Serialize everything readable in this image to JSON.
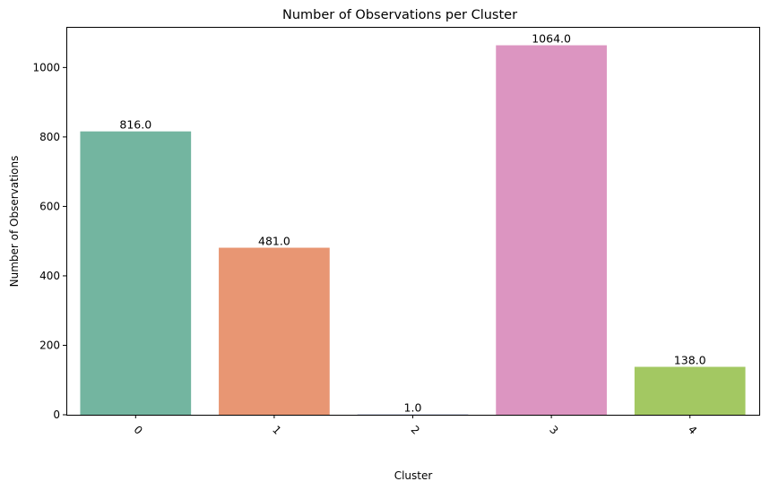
{
  "chart_data": {
    "type": "bar",
    "title": "Number of Observations per Cluster",
    "xlabel": "Cluster",
    "ylabel": "Number of Observations",
    "categories": [
      "0",
      "1",
      "2",
      "3",
      "4"
    ],
    "values": [
      816.0,
      481.0,
      1.0,
      1064.0,
      138.0
    ],
    "data_labels": [
      "816.0",
      "481.0",
      "1.0",
      "1064.0",
      "138.0"
    ],
    "colors": [
      "#73b5a0",
      "#e89673",
      "#8c96c0",
      "#dc95c1",
      "#a3c862"
    ],
    "ylim": [
      0,
      1117
    ],
    "yticks": [
      0,
      200,
      400,
      600,
      800,
      1000
    ],
    "xtick_rotation": 45,
    "grid": false,
    "legend": "none"
  }
}
